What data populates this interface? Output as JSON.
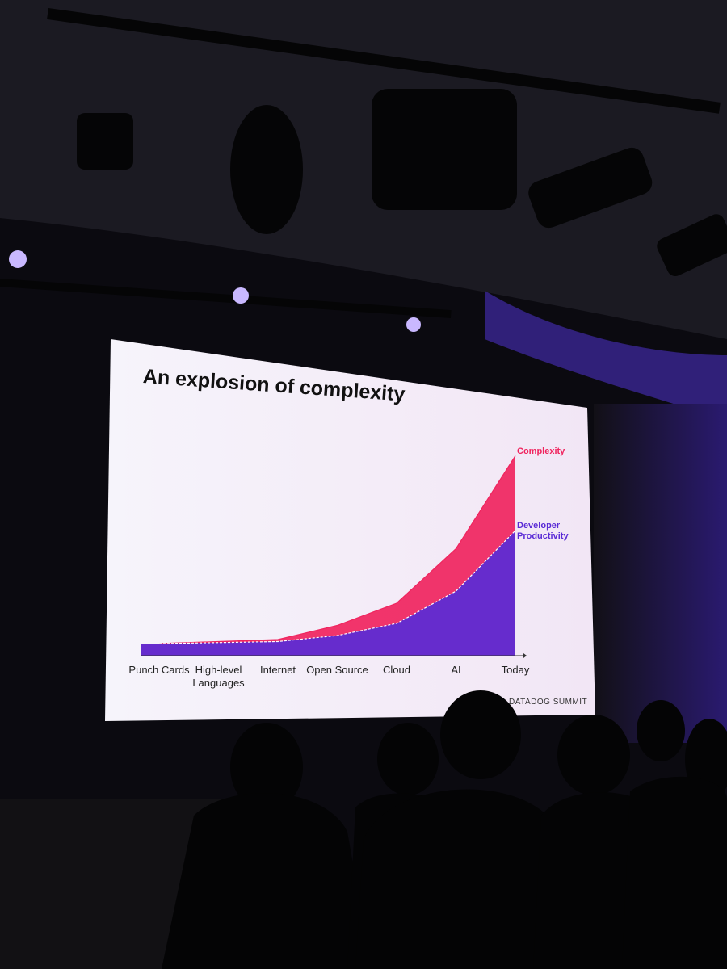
{
  "chart_data": {
    "type": "area",
    "title": "An explosion of complexity",
    "categories": [
      "Punch Cards",
      "High-level Languages",
      "Internet",
      "Open Source",
      "Cloud",
      "AI",
      "Today"
    ],
    "series": [
      {
        "name": "Complexity",
        "color": "#f0245e",
        "values": [
          6,
          7,
          8,
          15,
          26,
          53,
          99
        ]
      },
      {
        "name": "Developer Productivity",
        "color": "#5a2bd6",
        "values": [
          6,
          6.5,
          7,
          10,
          16,
          32,
          62
        ]
      }
    ],
    "ylim": [
      0,
      100
    ],
    "footer": "DATADOG SUMMIT"
  }
}
